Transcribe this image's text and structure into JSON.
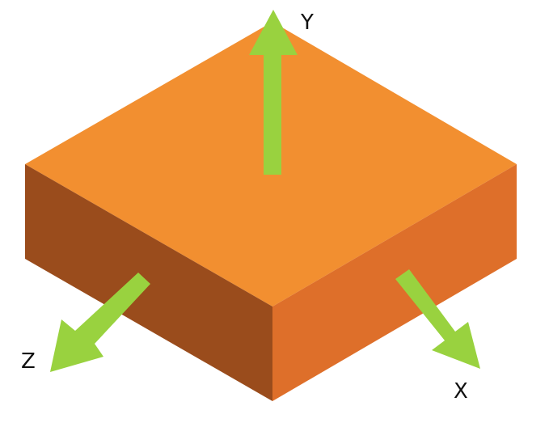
{
  "colors": {
    "background": "#ffffff",
    "top_face": "#f28f30",
    "left_face": "#9a4c1c",
    "right_face": "#de6f2a",
    "arrow": "#99d23f",
    "label": "#111111"
  },
  "axes": {
    "y": {
      "label": "Y"
    },
    "x": {
      "label": "X"
    },
    "z": {
      "label": "Z"
    }
  }
}
